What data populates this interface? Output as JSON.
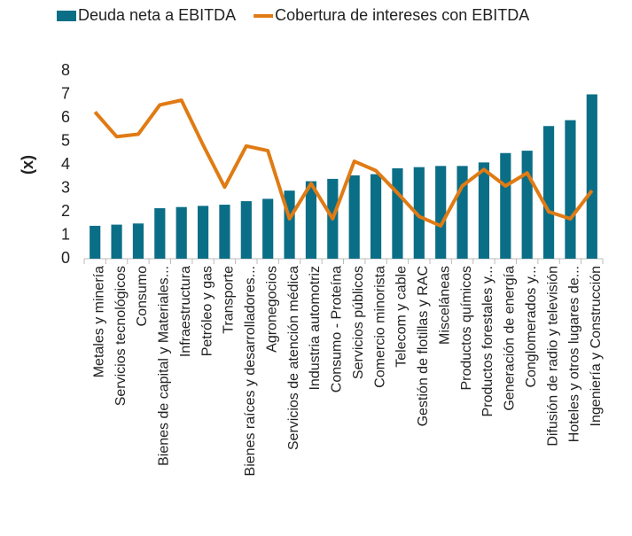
{
  "chart_data": {
    "type": "bar_line",
    "y_label": "(x)",
    "categories": [
      "Metales y minería",
      "Servicios tecnológicos",
      "Consumo",
      "Bienes de capital y Materiales...",
      "Infraestructura",
      "Petróleo y gas",
      "Transporte",
      "Bienes raíces y desarrolladores...",
      "Agronegocios",
      "Servicios de atención médica",
      "Industria automotriz",
      "Consumo - Proteína",
      "Servicios públicos",
      "Comercio minorista",
      "Telecom y cable",
      "Gestión de flotillas y RAC",
      "Misceláneas",
      "Productos químicos",
      "Productos forestales y...",
      "Generación de energía",
      "Conglomerados y...",
      "Difusión de radio y televisión",
      "Hoteles y otros lugares de...",
      "Ingeniería y Construcción"
    ],
    "series": [
      {
        "name": "Deuda neta a EBITDA",
        "type": "bar",
        "color": "#0b6e87",
        "values": [
          1.4,
          1.45,
          1.5,
          2.15,
          2.2,
          2.25,
          2.3,
          2.45,
          2.55,
          2.9,
          3.3,
          3.4,
          3.55,
          3.6,
          3.85,
          3.9,
          3.95,
          3.95,
          4.1,
          4.5,
          4.6,
          5.65,
          5.9,
          7.0
        ]
      },
      {
        "name": "Cobertura de intereses con EBITDA",
        "type": "line",
        "color": "#e07b14",
        "values": [
          6.25,
          5.2,
          5.3,
          6.55,
          6.75,
          4.85,
          3.05,
          4.8,
          4.6,
          1.7,
          3.2,
          1.7,
          4.15,
          3.75,
          2.8,
          1.8,
          1.4,
          3.1,
          3.8,
          3.1,
          3.65,
          2.0,
          1.7,
          2.9
        ]
      }
    ],
    "ylim": [
      0,
      8
    ],
    "yticks": [
      0,
      1,
      2,
      3,
      4,
      5,
      6,
      7,
      8
    ],
    "legend": "top"
  }
}
